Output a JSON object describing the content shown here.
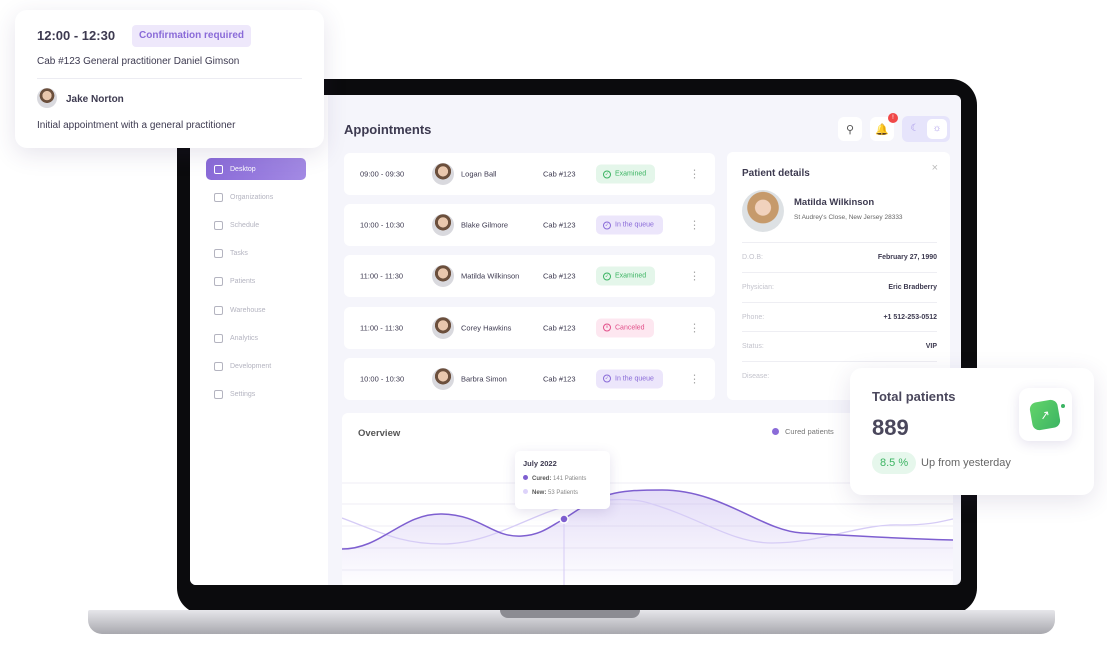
{
  "appointment_card": {
    "time": "12:00 - 12:30",
    "badge": "Confirmation required",
    "cabinet": "Cab #123  General practitioner Daniel Gimson",
    "patient": "Jake Norton",
    "description": "Initial appointment with a general practitioner"
  },
  "header": {
    "title": "Appointments",
    "notification_count": "!"
  },
  "sidebar": {
    "items": [
      {
        "label": "Desktop",
        "icon": "grid-icon",
        "active": true
      },
      {
        "label": "Organizations",
        "icon": "flag-icon"
      },
      {
        "label": "Schedule",
        "icon": "calendar-icon"
      },
      {
        "label": "Tasks",
        "icon": "star-icon"
      },
      {
        "label": "Patients",
        "icon": "user-icon"
      },
      {
        "label": "Warehouse",
        "icon": "box-icon"
      },
      {
        "label": "Analytics",
        "icon": "chart-icon"
      },
      {
        "label": "Development",
        "icon": "bolt-icon"
      },
      {
        "label": "Settings",
        "icon": "gear-icon"
      }
    ]
  },
  "appointments": [
    {
      "time": "09:00 - 09:30",
      "name": "Logan Ball",
      "cab": "Cab #123",
      "status": "Examined"
    },
    {
      "time": "10:00 - 10:30",
      "name": "Blake Gilmore",
      "cab": "Cab #123",
      "status": "In the queue"
    },
    {
      "time": "11:00 - 11:30",
      "name": "Matilda Wilkinson",
      "cab": "Cab #123",
      "status": "Examined"
    },
    {
      "time": "11:00 - 11:30",
      "name": "Corey Hawkins",
      "cab": "Cab #123",
      "status": "Canceled"
    },
    {
      "time": "10:00 - 10:30",
      "name": "Barbra Simon",
      "cab": "Cab #123",
      "status": "In the queue"
    }
  ],
  "patient_details": {
    "title": "Patient details",
    "name": "Matilda Wilkinson",
    "address": "St Audrey's Close, New Jersey 28333",
    "fields": [
      {
        "label": "D.O.B:",
        "value": "February 27, 1990"
      },
      {
        "label": "Physician:",
        "value": "Eric Bradberry"
      },
      {
        "label": "Phone:",
        "value": "+1 512-253-0512"
      },
      {
        "label": "Status:",
        "value": "VIP"
      },
      {
        "label": "Disease:",
        "value": ""
      }
    ]
  },
  "overview": {
    "title": "Overview",
    "legend": "Cured patients",
    "tooltip": {
      "month": "July 2022",
      "cured_label": "Cured:",
      "cured_value": "141 Patients",
      "new_label": "New:",
      "new_value": "53 Patients"
    }
  },
  "total_patients": {
    "title": "Total patients",
    "value": "889",
    "change": "8.5 %",
    "change_text": "Up from yesterday"
  },
  "colors": {
    "accent": "#8a6bd8",
    "success": "#3cb463",
    "danger": "#e2508a"
  }
}
